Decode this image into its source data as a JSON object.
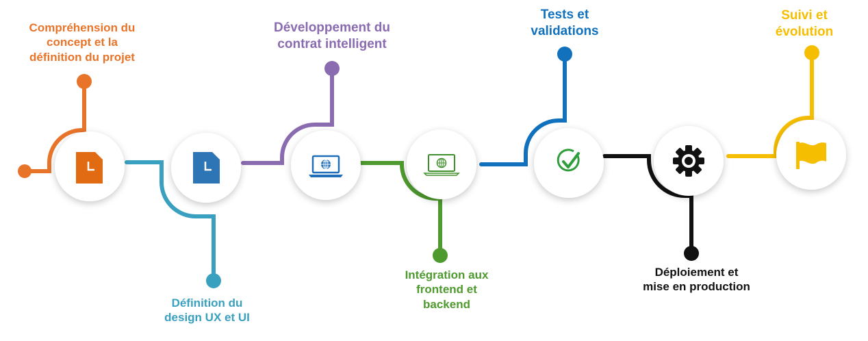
{
  "steps": [
    {
      "label": "Compréhension du\nconcept et la\ndéfinition du projet",
      "color": "#E8742A",
      "icon": "document-icon"
    },
    {
      "label": "Définition du\ndesign UX et UI",
      "color": "#3AA0C0",
      "icon": "document-icon"
    },
    {
      "label": "Développement du\ncontrat intelligent",
      "color": "#8A6BB0",
      "icon": "laptop-globe-icon"
    },
    {
      "label": "Intégration aux\nfrontend et\nbackend",
      "color": "#4E9A2E",
      "icon": "laptop-globe-icon"
    },
    {
      "label": "Tests et\nvalidations",
      "color": "#1271BC",
      "icon": "check-circle-icon"
    },
    {
      "label": "Déploiement et\nmise en production",
      "color": "#111111",
      "icon": "gear-icon"
    },
    {
      "label": "Suivi et\névolution",
      "color": "#F6BE00",
      "icon": "flag-icon"
    }
  ]
}
